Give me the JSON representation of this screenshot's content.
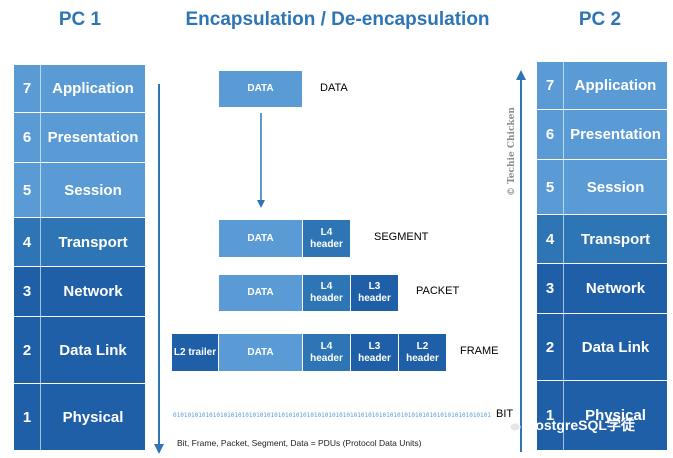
{
  "titles": {
    "left": "PC 1",
    "center": "Encapsulation / De-encapsulation",
    "right": "PC 2"
  },
  "layers": [
    {
      "num": "7",
      "name": "Application"
    },
    {
      "num": "6",
      "name": "Presentation"
    },
    {
      "num": "5",
      "name": "Session"
    },
    {
      "num": "4",
      "name": "Transport"
    },
    {
      "num": "3",
      "name": "Network"
    },
    {
      "num": "2",
      "name": "Data Link"
    },
    {
      "num": "1",
      "name": "Physical"
    }
  ],
  "pdu": {
    "data_box": "DATA",
    "l4": "L4 header",
    "l3": "L3 header",
    "l2": "L2 header",
    "l2_trailer": "L2 trailer",
    "labels": {
      "data": "DATA",
      "segment": "SEGMENT",
      "packet": "PACKET",
      "frame": "FRAME",
      "bit": "BIT"
    }
  },
  "bits": "0101010101010101010101010101010101010101010101010101010101010101010101010101010101010101",
  "footnote": "Bit, Frame, Packet, Segment, Data = PDUs (Protocol Data Units)",
  "watermark": "© Techie Chicken",
  "brand": "PostgreSQL学徒",
  "colors": {
    "light": "#5b9bd5",
    "mid": "#2e75b6",
    "dark": "#1f5fa8"
  }
}
